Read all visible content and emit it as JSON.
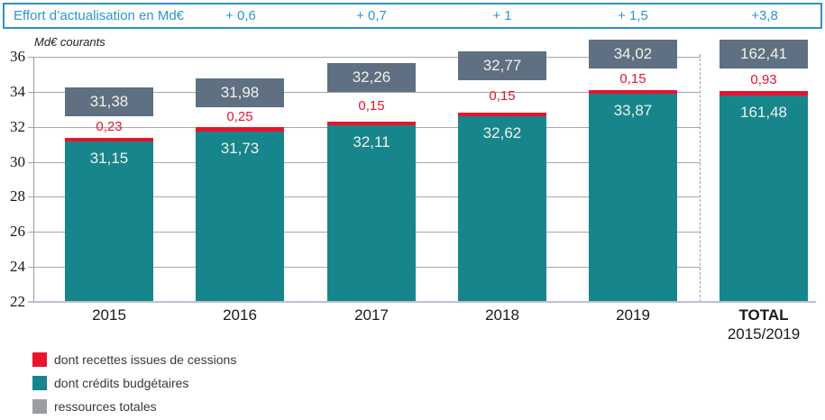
{
  "chart_data": {
    "type": "bar",
    "stacked": true,
    "title": "",
    "ylabel": "Md€ courants",
    "ylim": [
      22,
      36
    ],
    "yticks": [
      22,
      24,
      26,
      28,
      30,
      32,
      34,
      36
    ],
    "grid": true,
    "legend_position": "bottom-left",
    "categories": [
      "2015",
      "2016",
      "2017",
      "2018",
      "2019",
      "TOTAL 2015/2019"
    ],
    "x_tick_lines": [
      [
        "2015"
      ],
      [
        "2016"
      ],
      [
        "2017"
      ],
      [
        "2018"
      ],
      [
        "2019"
      ],
      [
        "TOTAL",
        "2015/2019"
      ]
    ],
    "series": [
      {
        "name": "dont crédits budgétaires",
        "role": "bar-segment-bottom",
        "color": "#16868C",
        "values": [
          31.15,
          31.73,
          32.11,
          32.62,
          33.87,
          161.48
        ],
        "labels": [
          "31,15",
          "31,73",
          "32,11",
          "32,62",
          "33,87",
          "161,48"
        ]
      },
      {
        "name": "dont recettes issues de cessions",
        "role": "bar-segment-top",
        "color": "#E8142D",
        "values": [
          0.23,
          0.25,
          0.15,
          0.15,
          0.15,
          0.93
        ],
        "labels": [
          "0,23",
          "0,25",
          "0,15",
          "0,15",
          "0,15",
          "0,93"
        ]
      },
      {
        "name": "ressources totales",
        "role": "floating-total-box",
        "color": "#5E7081",
        "values": [
          31.38,
          31.98,
          32.26,
          32.77,
          34.02,
          162.41
        ],
        "labels": [
          "31,38",
          "31,98",
          "32,26",
          "32,77",
          "34,02",
          "162,41"
        ]
      }
    ],
    "effort_row": {
      "label": "Effort d’actualisation en Md€",
      "values": [
        {
          "column": "2016",
          "text": "+ 0,6"
        },
        {
          "column": "2017",
          "text": "+ 0,7"
        },
        {
          "column": "2018",
          "text": "+ 1"
        },
        {
          "column": "2019",
          "text": "+ 1,5"
        },
        {
          "column": "TOTAL 2015/2019",
          "text": "+3,8"
        }
      ]
    }
  },
  "legend": [
    {
      "label": "dont recettes issues de cessions",
      "color": "#E8142D"
    },
    {
      "label": "dont crédits budgétaires",
      "color": "#16868C"
    },
    {
      "label": "ressources totales",
      "color": "#9A9EA3"
    }
  ],
  "colors": {
    "accent_blue": "#2C96CE",
    "teal": "#16868C",
    "red": "#E8142D",
    "slate_box": "#5E7081",
    "legend_gray": "#9A9EA3",
    "gridline": "#A8A8A8",
    "baseline": "#BFC1D2",
    "bar_label_text": "#F3F0E9"
  }
}
